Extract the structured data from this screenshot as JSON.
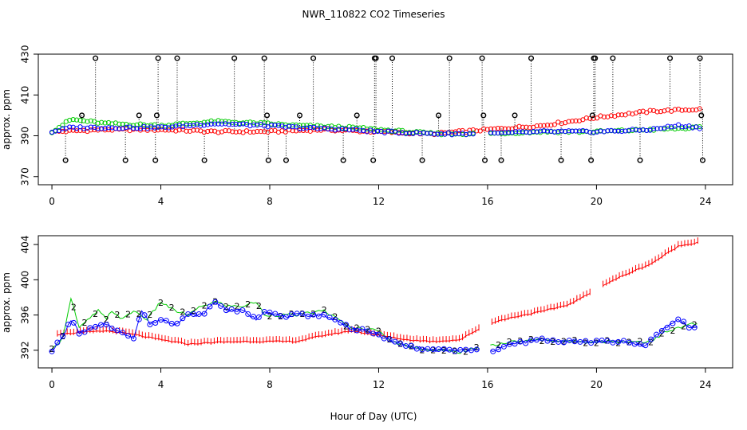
{
  "chart_data": {
    "type": "scatter",
    "title": "NWR_110822  CO2 Timeseries",
    "xlabel": "Hour of Day (UTC)",
    "xlim": [
      -0.5,
      25
    ],
    "xticks": [
      0,
      4,
      8,
      12,
      16,
      20,
      24
    ],
    "xtick_labels": [
      "0",
      "4",
      "8",
      "12",
      "16",
      "20",
      "24"
    ],
    "panels": [
      {
        "name": "top",
        "ylabel": "approx. ppm",
        "ylim": [
          366,
          430
        ],
        "yticks": [
          370,
          390,
          410,
          430
        ],
        "ytick_labels": [
          "370",
          "390",
          "410",
          "430"
        ],
        "series": [
          {
            "name": "red",
            "color": "#ff0000",
            "x": [
              0,
              2,
              4,
              6,
              8,
              10,
              12,
              14,
              16,
              18,
              20,
              22,
              23.8
            ],
            "y": [
              392,
              393,
              393,
              392,
              392,
              393,
              392,
              391,
              393,
              395,
              399,
              402,
              403
            ]
          },
          {
            "name": "green",
            "color": "#00cc00",
            "x": [
              0,
              0.7,
              2,
              4,
              6,
              7.8,
              9,
              11,
              12,
              14,
              16,
              18,
              20,
              22,
              23.8
            ],
            "y": [
              392,
              398,
              396,
              395,
              397,
              396,
              395,
              394,
              393,
              391,
              391,
              392,
              392,
              393,
              394
            ]
          },
          {
            "name": "blue",
            "color": "#0000ff",
            "x": [
              0,
              0.7,
              2,
              4,
              6,
              7.8,
              9,
              11,
              12,
              14,
              16,
              18,
              20,
              22,
              23,
              23.8
            ],
            "y": [
              392,
              394,
              394,
              394,
              396,
              395,
              394,
              393,
              392,
              391,
              391,
              392,
              392,
              393,
              395,
              394
            ]
          },
          {
            "name": "black",
            "color": "#000000",
            "x": [
              0.5,
              1.6,
              1.1,
              2.7,
              3.2,
              3.8,
              3.85,
              3.9,
              4.6,
              5.6,
              6.7,
              7.8,
              7.9,
              7.95,
              8.6,
              9.1,
              9.6,
              10.7,
              11.2,
              11.8,
              11.85,
              11.9,
              12.5,
              13.6,
              14.2,
              14.6,
              15.8,
              15.85,
              15.9,
              16.5,
              17.0,
              17.6,
              18.7,
              19.8,
              19.85,
              19.9,
              19.95,
              20.6,
              21.6,
              22.7,
              23.8,
              23.85,
              23.9
            ],
            "y": [
              378,
              428,
              400,
              378,
              400,
              378,
              400,
              428,
              428,
              378,
              428,
              428,
              400,
              378,
              378,
              400,
              428,
              378,
              400,
              378,
              428,
              428,
              428,
              378,
              400,
              428,
              428,
              400,
              378,
              378,
              400,
              428,
              378,
              378,
              400,
              428,
              428,
              428,
              378,
              428,
              428,
              400,
              378
            ]
          }
        ]
      },
      {
        "name": "bottom",
        "ylabel": "approx. ppm",
        "ylim": [
          390,
          405
        ],
        "yticks": [
          392,
          396,
          400,
          404
        ],
        "ytick_labels": [
          "392",
          "396",
          "400",
          "404"
        ],
        "series": [
          {
            "name": "1",
            "color": "#ff0000",
            "x": [
              0.2,
              1.0,
              2.0,
              3.0,
              3.8,
              5.0,
              6.0,
              7.0,
              7.8,
              9.0,
              10.0,
              11.0,
              11.8,
              13.0,
              14.0,
              15.0,
              16.0,
              17.0,
              18.0,
              19.0,
              19.8,
              20.2,
              21.0,
              22.0,
              22.5,
              23.0,
              23.8
            ],
            "y": [
              393.8,
              394.0,
              394.2,
              393.8,
              393.3,
              392.7,
              392.9,
              393.0,
              393.0,
              393.0,
              393.7,
              394.2,
              393.8,
              393.2,
              393.0,
              393.2,
              395.0,
              395.8,
              396.4,
              397.2,
              398.5,
              399.3,
              400.5,
              401.8,
              402.8,
              403.8,
              404.3
            ]
          },
          {
            "name": "2",
            "color": "#00cc00",
            "x": [
              0,
              0.4,
              0.7,
              1.0,
              1.7,
              2.0,
              2.2,
              2.6,
              3.0,
              3.5,
              4.0,
              4.5,
              5.0,
              5.5,
              6.0,
              6.5,
              7.0,
              7.5,
              7.8,
              8.5,
              9.0,
              10.0,
              11.0,
              11.8,
              12.5,
              13.0,
              14.0,
              15.0,
              16.0,
              17.0,
              18.0,
              19.0,
              19.8,
              20.2,
              21.0,
              22.0,
              22.5,
              23.0,
              23.5,
              23.8
            ],
            "y": [
              392.0,
              393.5,
              398.0,
              394.5,
              396.5,
              395.5,
              396.5,
              395.5,
              396.5,
              395.5,
              397.5,
              396.5,
              396.0,
              397.0,
              397.5,
              397.0,
              397.0,
              397.5,
              396.0,
              396.0,
              396.0,
              396.5,
              394.5,
              394.5,
              393.0,
              392.5,
              392.0,
              391.8,
              392.5,
              393.0,
              393.2,
              393.0,
              393.0,
              393.0,
              393.0,
              393.0,
              394.0,
              394.5,
              395.0,
              395.0
            ]
          },
          {
            "name": "3",
            "color": "#0000ff",
            "x": [
              0,
              0.4,
              0.7,
              1.0,
              1.5,
              2.0,
              2.5,
              3.0,
              3.3,
              3.6,
              4.0,
              4.5,
              5.0,
              5.5,
              6.0,
              6.5,
              7.0,
              7.5,
              7.8,
              8.5,
              9.0,
              10.0,
              11.0,
              11.8,
              12.5,
              13.0,
              14.0,
              15.0,
              15.8,
              16.2,
              17.0,
              18.0,
              19.0,
              19.8,
              20.2,
              21.0,
              21.8,
              22.5,
              23.0,
              23.5,
              23.8
            ],
            "y": [
              392.0,
              393.5,
              395.5,
              394.0,
              394.5,
              395.0,
              394.0,
              393.5,
              396.5,
              395.0,
              395.5,
              395.0,
              396.0,
              396.0,
              397.5,
              396.5,
              396.5,
              395.5,
              396.5,
              395.8,
              396.0,
              396.0,
              394.5,
              394.0,
              393.0,
              392.5,
              392.0,
              392.0,
              392.0,
              392.0,
              392.8,
              393.2,
              393.0,
              393.0,
              393.0,
              393.0,
              392.5,
              394.5,
              395.5,
              394.5,
              394.8
            ]
          }
        ]
      }
    ]
  }
}
